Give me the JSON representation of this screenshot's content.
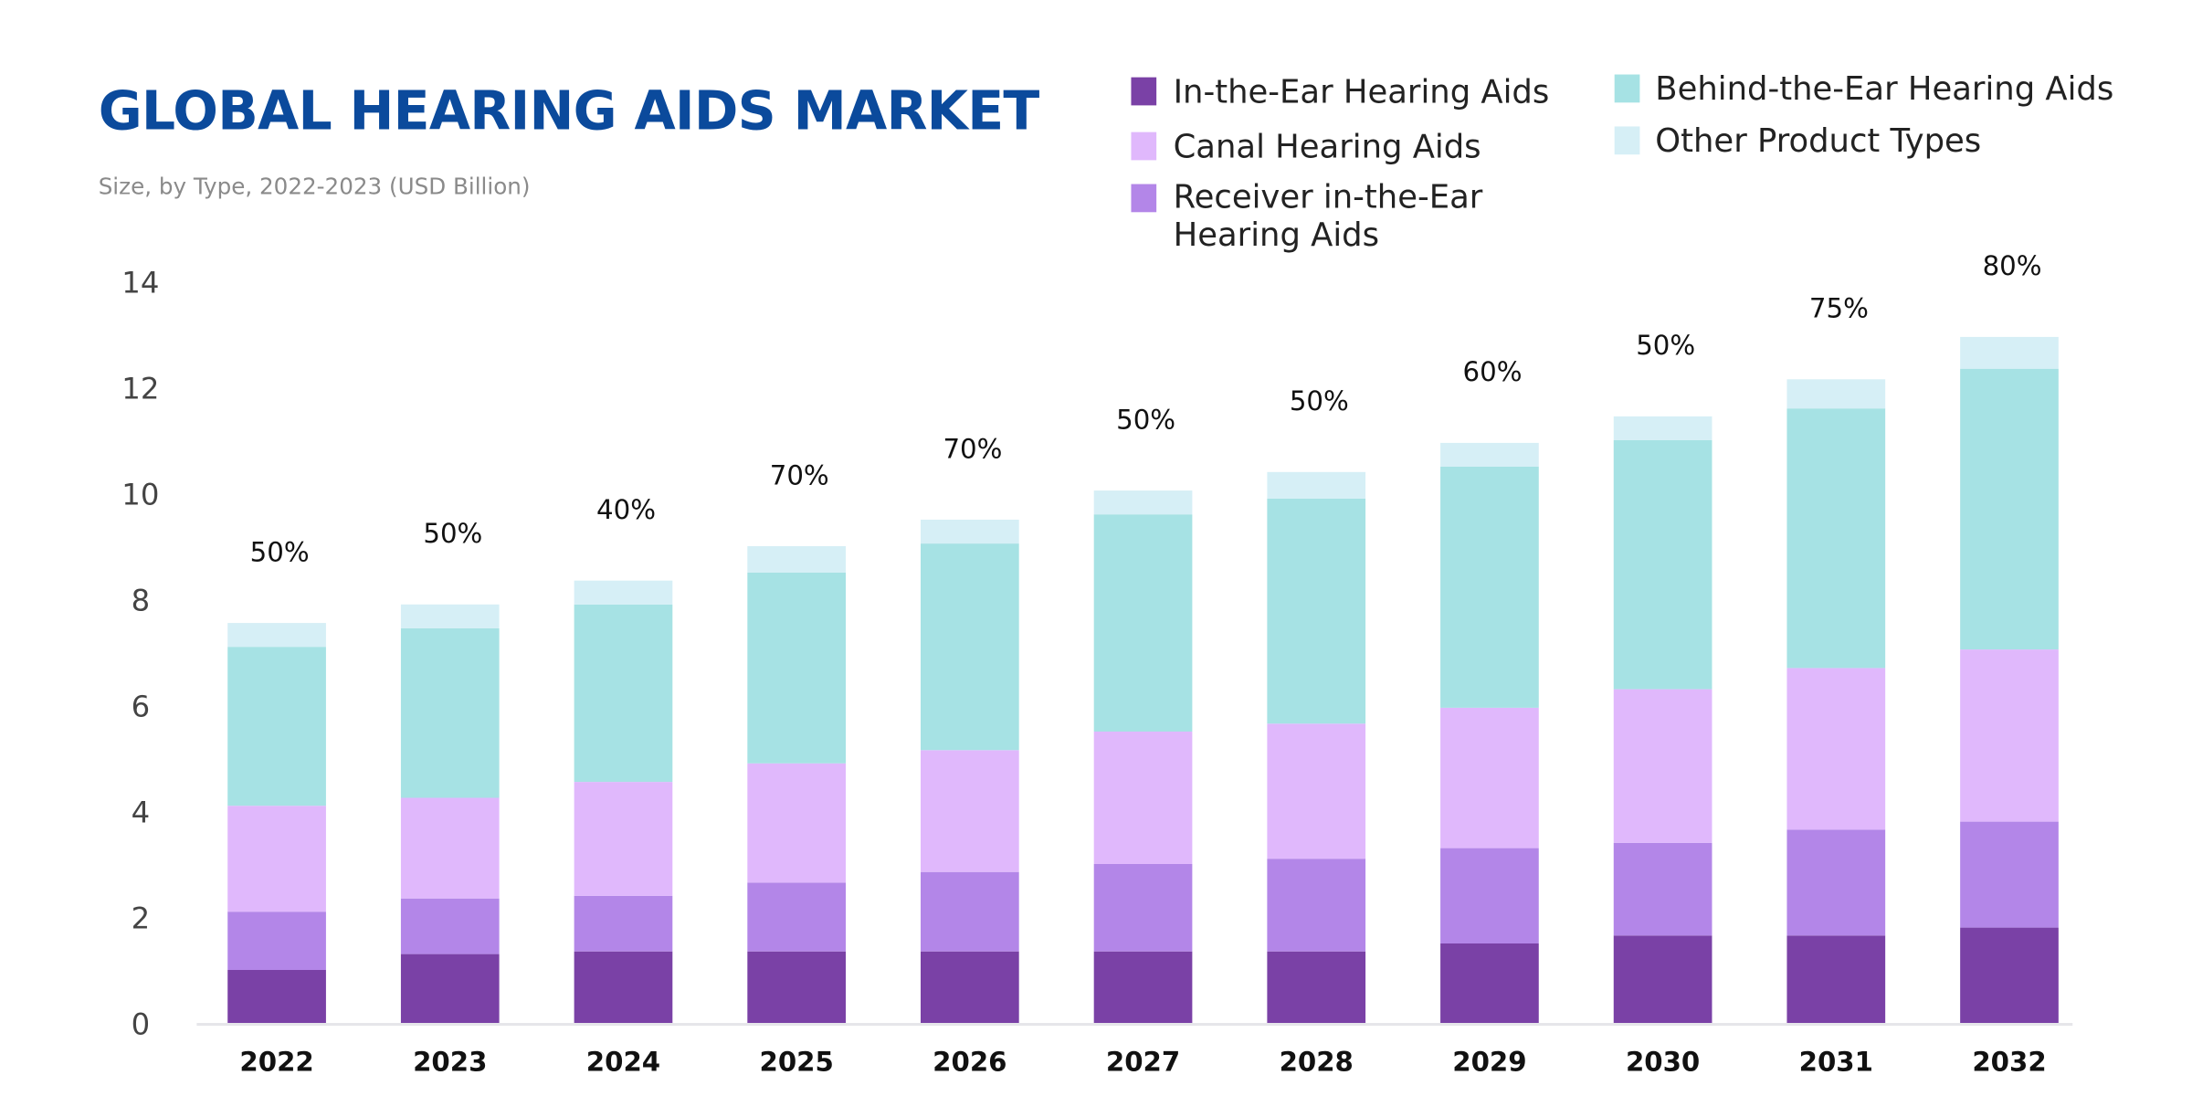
{
  "title": "GLOBAL HEARING AIDS MARKET",
  "subtitle": "Size, by Type, 2022-2023 (USD Billion)",
  "chart_data": {
    "type": "bar",
    "stacked": true,
    "title": "GLOBAL HEARING AIDS MARKET",
    "subtitle": "Size, by Type, 2022-2023 (USD Billion)",
    "xlabel": "",
    "ylabel": "",
    "ylim": [
      0,
      14
    ],
    "yticks": [
      "0",
      "2",
      "4",
      "6",
      "8",
      "10",
      "12",
      "14"
    ],
    "grid": false,
    "legend_position": "top-right",
    "categories": [
      "2022",
      "2023",
      "2024",
      "2025",
      "2026",
      "2027",
      "2028",
      "2029",
      "2030",
      "2031",
      "2032"
    ],
    "series": [
      {
        "name": "In-the-Ear Hearing Aids",
        "color": "#7a41a6",
        "values": [
          1.0,
          1.3,
          1.35,
          1.35,
          1.35,
          1.35,
          1.35,
          1.5,
          1.65,
          1.65,
          1.8
        ]
      },
      {
        "name": "Receiver in-the-Ear Hearing Aids",
        "color": "#b386e8",
        "values": [
          1.1,
          1.05,
          1.05,
          1.3,
          1.5,
          1.65,
          1.75,
          1.8,
          1.75,
          2.0,
          2.0
        ]
      },
      {
        "name": "Canal Hearing Aids",
        "color": "#e0b8fc",
        "values": [
          2.0,
          1.9,
          2.15,
          2.25,
          2.3,
          2.5,
          2.55,
          2.65,
          2.9,
          3.05,
          3.25
        ]
      },
      {
        "name": "Behind-the-Ear Hearing Aids",
        "color": "#a6e2e4",
        "values": [
          3.0,
          3.2,
          3.35,
          3.6,
          3.9,
          4.1,
          4.25,
          4.55,
          4.7,
          4.9,
          5.3
        ]
      },
      {
        "name": "Other Product Types",
        "color": "#d6eff6",
        "values": [
          0.45,
          0.45,
          0.45,
          0.5,
          0.45,
          0.45,
          0.5,
          0.45,
          0.45,
          0.55,
          0.6
        ]
      }
    ],
    "annotations": [
      "50%",
      "50%",
      "40%",
      "70%",
      "70%",
      "50%",
      "50%",
      "60%",
      "50%",
      "75%",
      "80%"
    ]
  },
  "legend": [
    {
      "label": "In-the-Ear Hearing Aids",
      "color": "#7a41a6"
    },
    {
      "label": "Canal Hearing Aids",
      "color": "#e0b8fc"
    },
    {
      "label_line1": "Receiver in-the-Ear",
      "label_line2": "Hearing Aids",
      "color": "#b386e8"
    },
    {
      "label": "Behind-the-Ear Hearing Aids",
      "color": "#a6e2e4"
    },
    {
      "label": "Other Product Types",
      "color": "#d6eff6"
    }
  ]
}
